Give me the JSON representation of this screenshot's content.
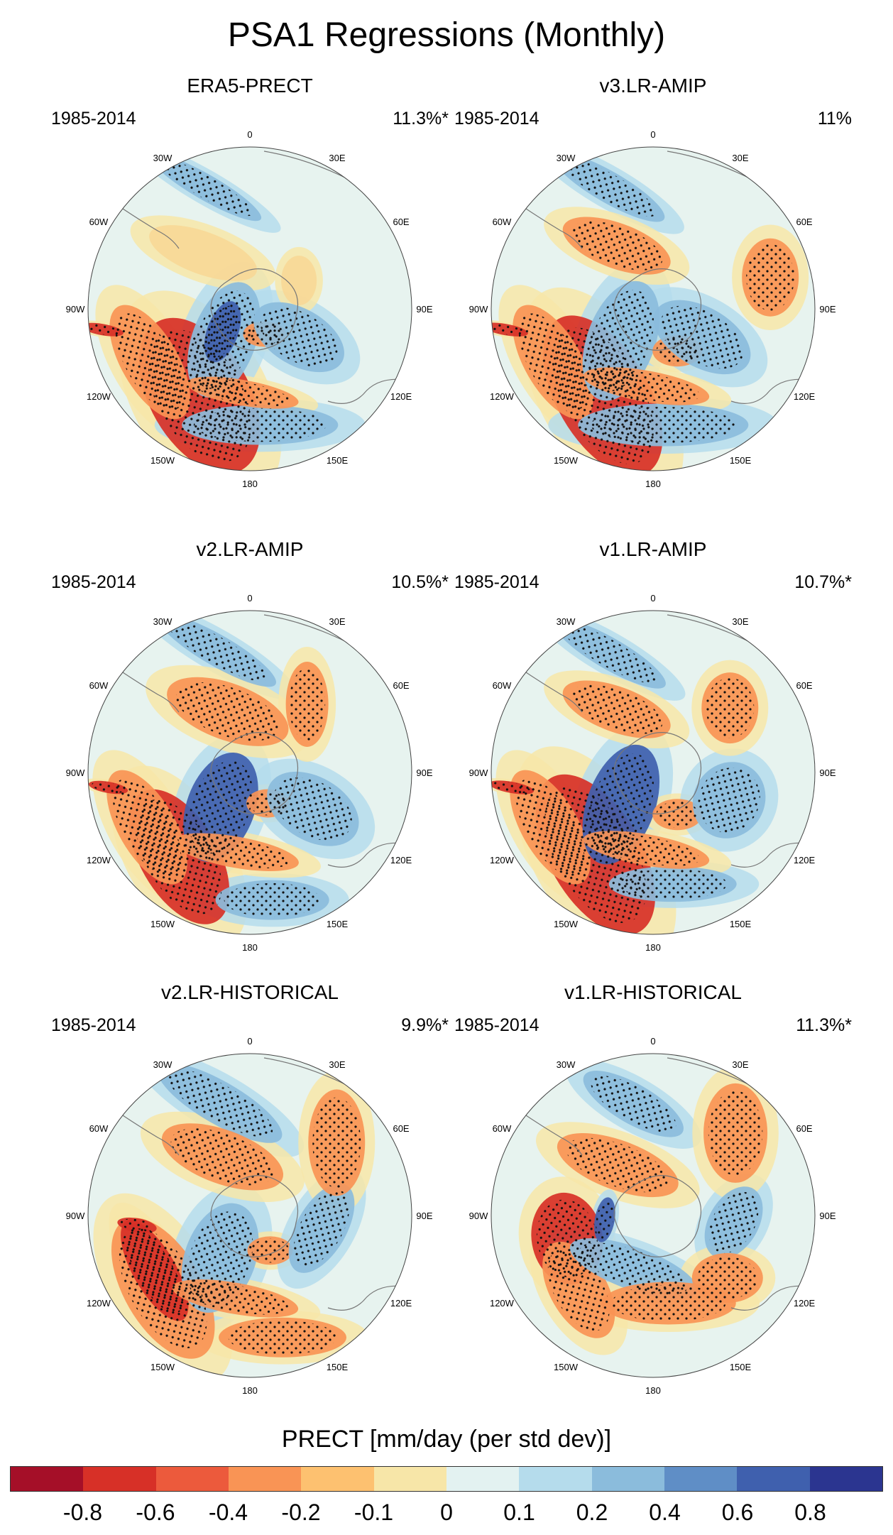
{
  "figure_title": "PSA1 Regressions (Monthly)",
  "panels": [
    {
      "title": "ERA5-PRECT",
      "period": "1985-2014",
      "percent": "11.3%*"
    },
    {
      "title": "v3.LR-AMIP",
      "period": "1985-2014",
      "percent": "11%"
    },
    {
      "title": "v2.LR-AMIP",
      "period": "1985-2014",
      "percent": "10.5%*"
    },
    {
      "title": "v1.LR-AMIP",
      "period": "1985-2014",
      "percent": "10.7%*"
    },
    {
      "title": "v2.LR-HISTORICAL",
      "period": "1985-2014",
      "percent": "9.9%*"
    },
    {
      "title": "v1.LR-HISTORICAL",
      "period": "1985-2014",
      "percent": "11.3%*"
    }
  ],
  "longitude_labels": [
    "0",
    "30E",
    "60E",
    "90E",
    "120E",
    "150E",
    "180",
    "150W",
    "120W",
    "90W",
    "60W",
    "30W"
  ],
  "colorbar": {
    "title": "PRECT [mm/day (per std dev)]",
    "tick_labels": [
      "-0.8",
      "-0.6",
      "-0.4",
      "-0.2",
      "-0.1",
      "0",
      "0.1",
      "0.2",
      "0.4",
      "0.6",
      "0.8"
    ],
    "colors": [
      "#a50f28",
      "#d73027",
      "#ec5a3c",
      "#f99455",
      "#fdc170",
      "#f7e6a8",
      "#e3f2f1",
      "#b5dcec",
      "#8bbcdc",
      "#5f8ec6",
      "#3f60ae",
      "#2b3590"
    ]
  },
  "map_palette": {
    "ocean": "#e7f3ef",
    "neg_strong": "#3f60ae",
    "neg": "#8bbcdc",
    "pos": "#f99455",
    "pos_strong": "#d73027",
    "pos_weak": "#f7d897",
    "coast": "#777777"
  }
}
